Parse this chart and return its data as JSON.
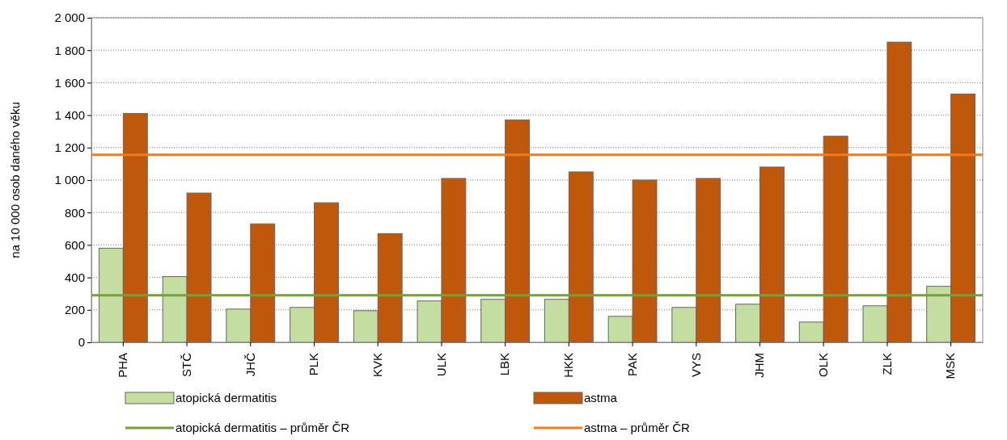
{
  "chart_data": {
    "type": "bar",
    "ylabel": "na 10 000 osob daného věku",
    "categories": [
      "PHA",
      "STČ",
      "JHČ",
      "PLK",
      "KVK",
      "ULK",
      "LBK",
      "HKK",
      "PAK",
      "VYS",
      "JHM",
      "OLK",
      "ZLK",
      "MSK"
    ],
    "series": [
      {
        "name": "atopická dermatitis",
        "color": "#c3dea0",
        "values": [
          580,
          405,
          205,
          215,
          195,
          255,
          265,
          265,
          160,
          215,
          235,
          125,
          225,
          345
        ]
      },
      {
        "name": "astma",
        "color": "#c0580c",
        "values": [
          1410,
          920,
          730,
          860,
          670,
          1010,
          1370,
          1050,
          1000,
          1010,
          1080,
          1270,
          1850,
          1530
        ]
      }
    ],
    "ylim": [
      0,
      2000
    ],
    "yticks": [
      0,
      200,
      400,
      600,
      800,
      {
        "value": 1000,
        "label": "1 000"
      },
      {
        "value": 1200,
        "label": "1 200"
      },
      {
        "value": 1400,
        "label": "1 400"
      },
      {
        "value": 1600,
        "label": "1 600"
      },
      {
        "value": 1800,
        "label": "1 800"
      },
      {
        "value": 2000,
        "label": "2 000"
      }
    ],
    "grid": "y",
    "legend": "bottom",
    "ref_lines": [
      {
        "axis": "y",
        "value": 290,
        "label": "atopická dermatitis – průměr ČR",
        "color": "#77a03c"
      },
      {
        "axis": "y",
        "value": 1155,
        "label": "astma – průměr ČR",
        "color": "#f07c20"
      }
    ]
  }
}
